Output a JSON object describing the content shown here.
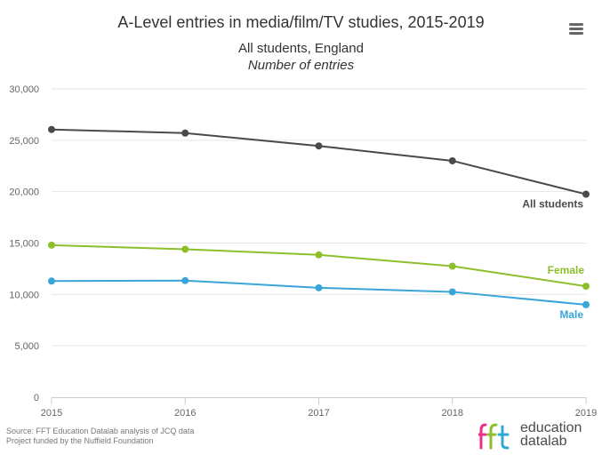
{
  "header": {
    "title": "A-Level entries in media/film/TV studies, 2015-2019",
    "subtitle": "All students, England",
    "subtitle_italic": "Number of entries",
    "menu_icon": "hamburger-menu-icon"
  },
  "footer": {
    "source": "Source: FFT Education Datalab analysis of JCQ data",
    "funding": "Project funded by the Nuffield Foundation",
    "logo_text_line1": "education",
    "logo_text_line2": "datalab",
    "logo_mark": "fft",
    "logo_colors": [
      "#e7308a",
      "#8bbf2b",
      "#2ea8d5"
    ]
  },
  "chart_data": {
    "type": "line",
    "x": [
      "2015",
      "2016",
      "2017",
      "2018",
      "2019"
    ],
    "ylim": [
      0,
      30000
    ],
    "yticks": [
      0,
      5000,
      10000,
      15000,
      20000,
      25000,
      30000
    ],
    "ytick_labels": [
      "0",
      "5,000",
      "10,000",
      "15,000",
      "20,000",
      "25,000",
      "30,000"
    ],
    "grid": true,
    "legend": "end-of-line labels",
    "series": [
      {
        "name": "All students",
        "color": "#4a4a4a",
        "values": [
          26050,
          25700,
          24450,
          23000,
          19750
        ]
      },
      {
        "name": "Female",
        "color": "#8dbf2a",
        "values": [
          14800,
          14400,
          13850,
          12750,
          10800
        ]
      },
      {
        "name": "Male",
        "color": "#39a5d8",
        "values": [
          11300,
          11350,
          10650,
          10250,
          9000
        ]
      }
    ]
  }
}
